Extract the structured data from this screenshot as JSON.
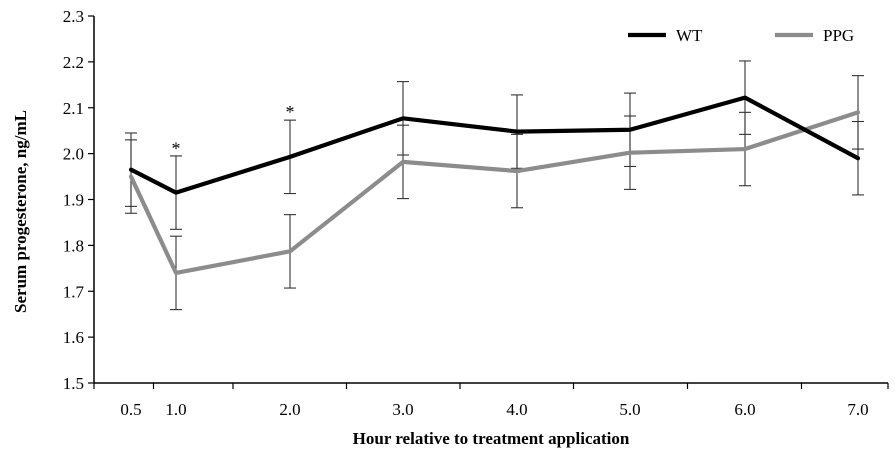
{
  "chart_data": {
    "type": "line",
    "title": "",
    "xlabel": "Hour relative to treatment application",
    "ylabel": "Serum progesterone, ng/mL",
    "ylim": [
      1.5,
      2.3
    ],
    "yticks": [
      "1.5",
      "1.6",
      "1.7",
      "1.8",
      "1.9",
      "2.0",
      "2.1",
      "2.2",
      "2.3"
    ],
    "categories": [
      "0.5",
      "1.0",
      "2.0",
      "3.0",
      "4.0",
      "5.0",
      "6.0",
      "7.0"
    ],
    "legend_position": "top-right",
    "grid": false,
    "series": [
      {
        "name": "WT",
        "color": "#000000",
        "values": [
          1.965,
          1.915,
          1.993,
          2.077,
          2.048,
          2.052,
          2.122,
          1.99
        ],
        "error": [
          0.08,
          0.08,
          0.08,
          0.08,
          0.08,
          0.08,
          0.08,
          0.08
        ]
      },
      {
        "name": "PPG",
        "color": "#8c8c8c",
        "values": [
          1.95,
          1.74,
          1.787,
          1.982,
          1.962,
          2.002,
          2.01,
          2.09
        ],
        "error": [
          0.08,
          0.08,
          0.08,
          0.08,
          0.08,
          0.08,
          0.08,
          0.08
        ]
      }
    ],
    "annotations": [
      {
        "text": "*",
        "category": "1.0",
        "y": 2.02
      },
      {
        "text": "*",
        "category": "2.0",
        "y": 2.1
      }
    ]
  }
}
